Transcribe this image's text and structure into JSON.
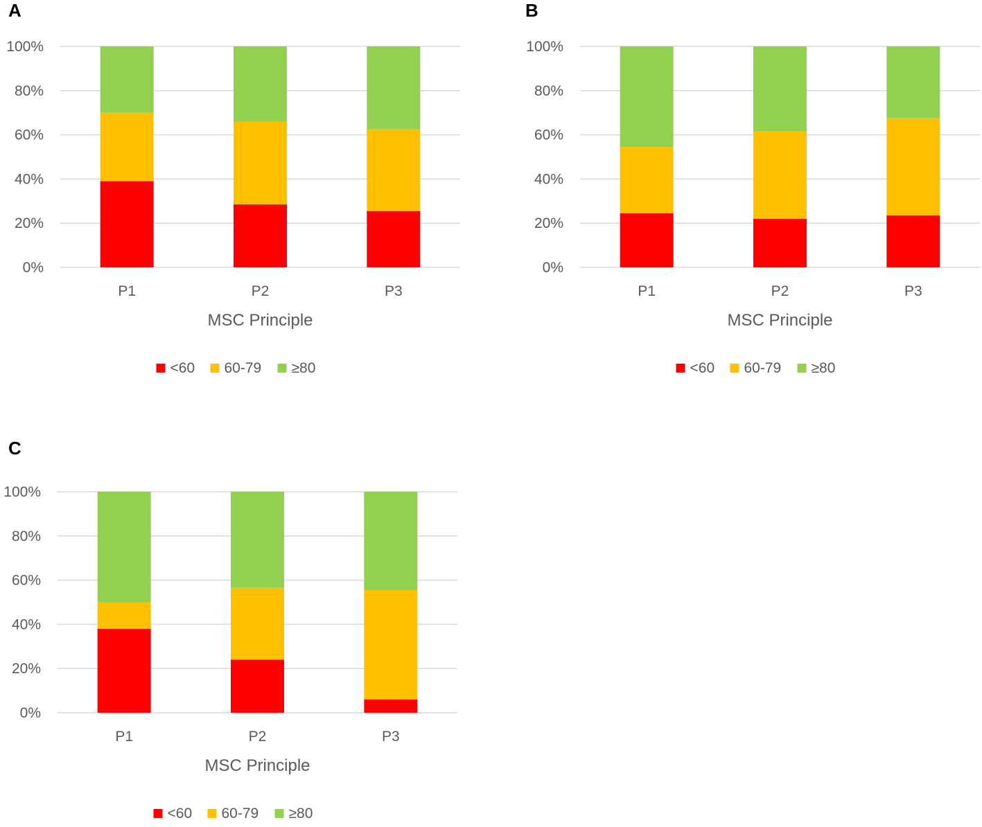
{
  "chart_data": [
    {
      "type": "bar",
      "stacked": true,
      "panel": "A",
      "categories": [
        "P1",
        "P2",
        "P3"
      ],
      "series": [
        {
          "name": "<60",
          "color": "#ff0000",
          "values": [
            39,
            28.5,
            25.5
          ]
        },
        {
          "name": "60-79",
          "color": "#ffc000",
          "values": [
            31,
            37.5,
            37
          ]
        },
        {
          "name": "≥80",
          "color": "#92d050",
          "values": [
            30,
            34,
            37.5
          ]
        }
      ],
      "xlabel": "MSC Principle",
      "ylabel": "",
      "ylim": [
        0,
        100
      ],
      "yticks": [
        "0%",
        "20%",
        "40%",
        "60%",
        "80%",
        "100%"
      ],
      "legend": "bottom"
    },
    {
      "type": "bar",
      "stacked": true,
      "panel": "B",
      "categories": [
        "P1",
        "P2",
        "P3"
      ],
      "series": [
        {
          "name": "<60",
          "color": "#ff0000",
          "values": [
            24.5,
            22,
            23.5
          ]
        },
        {
          "name": "60-79",
          "color": "#ffc000",
          "values": [
            30,
            39.5,
            44
          ]
        },
        {
          "name": "≥80",
          "color": "#92d050",
          "values": [
            45.5,
            38.5,
            32.5
          ]
        }
      ],
      "xlabel": "MSC Principle",
      "ylabel": "",
      "ylim": [
        0,
        100
      ],
      "yticks": [
        "0%",
        "20%",
        "40%",
        "60%",
        "80%",
        "100%"
      ],
      "legend": "bottom"
    },
    {
      "type": "bar",
      "stacked": true,
      "panel": "C",
      "categories": [
        "P1",
        "P2",
        "P3"
      ],
      "series": [
        {
          "name": "<60",
          "color": "#ff0000",
          "values": [
            38,
            24,
            6
          ]
        },
        {
          "name": "60-79",
          "color": "#ffc000",
          "values": [
            12,
            32.5,
            49.5
          ]
        },
        {
          "name": "≥80",
          "color": "#92d050",
          "values": [
            50,
            43.5,
            44.5
          ]
        }
      ],
      "xlabel": "MSC Principle",
      "ylabel": "",
      "ylim": [
        0,
        100
      ],
      "yticks": [
        "0%",
        "20%",
        "40%",
        "60%",
        "80%",
        "100%"
      ],
      "legend": "bottom"
    }
  ]
}
